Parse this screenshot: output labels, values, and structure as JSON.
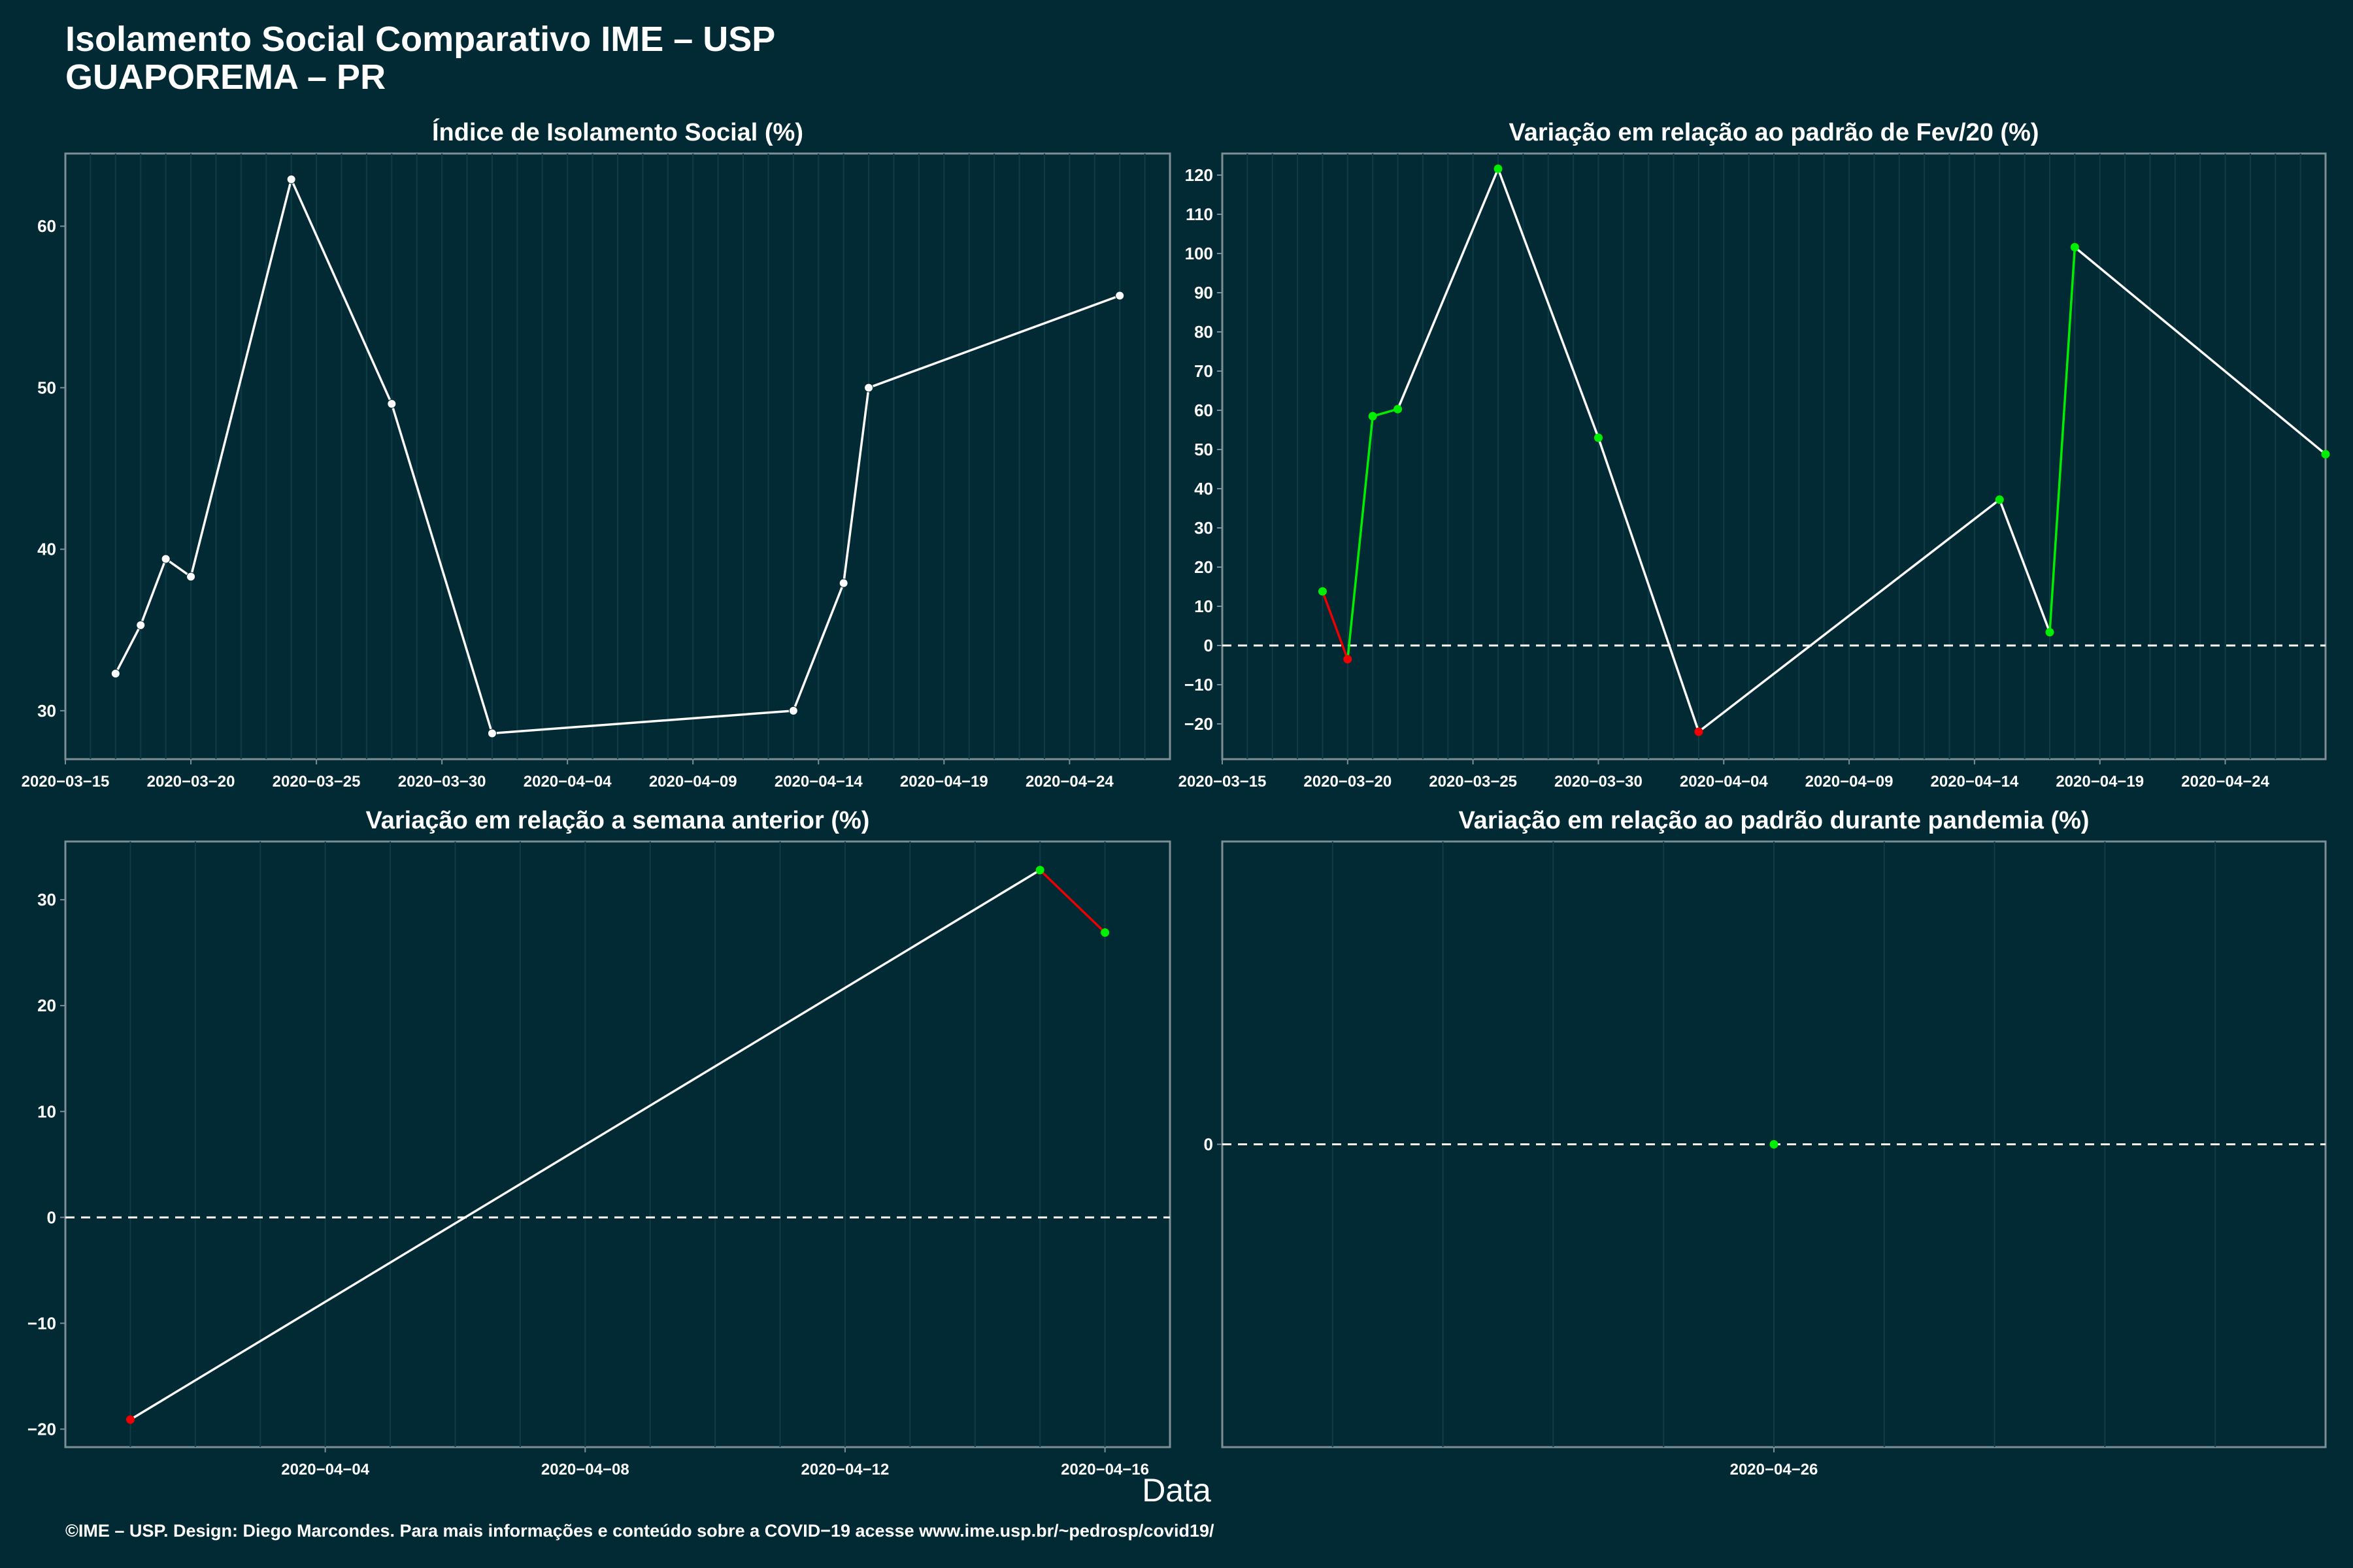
{
  "header": {
    "title_line1": "Isolamento Social Comparativo IME – USP",
    "title_line2": "GUAPOREMA – PR"
  },
  "x_axis_label": "Data",
  "footer": "©IME – USP. Design: Diego Marcondes. Para mais informações e conteúdo sobre a COVID−19 acesse www.ime.usp.br/~pedrosp/covid19/",
  "colors": {
    "background": "#022a35",
    "line": "#ffffff",
    "up": "#00ee00",
    "down": "#ee0000"
  },
  "chart_data": [
    {
      "type": "line",
      "title": "Índice de Isolamento Social (%)",
      "x_type": "date",
      "xlim": [
        "2020-03-15",
        "2020-04-28"
      ],
      "ylim": [
        27,
        64.5
      ],
      "x_ticks": [
        "2020-03-15",
        "2020-03-20",
        "2020-03-25",
        "2020-03-30",
        "2020-04-04",
        "2020-04-09",
        "2020-04-14",
        "2020-04-19",
        "2020-04-24"
      ],
      "x_tick_labels": [
        "2020−03−15",
        "2020−03−20",
        "2020−03−25",
        "2020−03−30",
        "2020−04−04",
        "2020−04−09",
        "2020−04−14",
        "2020−04−19",
        "2020−04−24"
      ],
      "y_ticks": [
        30,
        40,
        50,
        60
      ],
      "y_tick_labels": [
        "30",
        "40",
        "50",
        "60"
      ],
      "zero_line": false,
      "colored": false,
      "points": [
        {
          "x": "2020-03-17",
          "y": 32.3
        },
        {
          "x": "2020-03-18",
          "y": 35.3
        },
        {
          "x": "2020-03-19",
          "y": 39.4
        },
        {
          "x": "2020-03-20",
          "y": 38.3
        },
        {
          "x": "2020-03-24",
          "y": 62.9
        },
        {
          "x": "2020-03-28",
          "y": 49.0
        },
        {
          "x": "2020-04-01",
          "y": 28.6
        },
        {
          "x": "2020-04-13",
          "y": 30.0
        },
        {
          "x": "2020-04-15",
          "y": 37.9
        },
        {
          "x": "2020-04-16",
          "y": 50.0
        },
        {
          "x": "2020-04-26",
          "y": 55.7
        }
      ]
    },
    {
      "type": "line",
      "title": "Variação em relação ao padrão de Fev/20 (%)",
      "x_type": "date",
      "xlim": [
        "2020-03-15",
        "2020-04-28"
      ],
      "ylim": [
        -29,
        125.5
      ],
      "x_ticks": [
        "2020-03-15",
        "2020-03-20",
        "2020-03-25",
        "2020-03-30",
        "2020-04-04",
        "2020-04-09",
        "2020-04-14",
        "2020-04-19",
        "2020-04-24"
      ],
      "x_tick_labels": [
        "2020−03−15",
        "2020−03−20",
        "2020−03−25",
        "2020−03−30",
        "2020−04−04",
        "2020−04−09",
        "2020−04−14",
        "2020−04−19",
        "2020−04−24"
      ],
      "y_ticks": [
        -20,
        -10,
        0,
        10,
        20,
        30,
        40,
        50,
        60,
        70,
        80,
        90,
        100,
        110,
        120
      ],
      "y_tick_labels": [
        "−20",
        "−10",
        "0",
        "10",
        "20",
        "30",
        "40",
        "50",
        "60",
        "70",
        "80",
        "90",
        "100",
        "110",
        "120"
      ],
      "zero_line": true,
      "colored": true,
      "points": [
        {
          "x": "2020-03-19",
          "y": 13.8
        },
        {
          "x": "2020-03-20",
          "y": -3.5
        },
        {
          "x": "2020-03-21",
          "y": 58.5
        },
        {
          "x": "2020-03-22",
          "y": 60.3
        },
        {
          "x": "2020-03-26",
          "y": 121.6
        },
        {
          "x": "2020-03-30",
          "y": 53.0
        },
        {
          "x": "2020-04-03",
          "y": -22.0
        },
        {
          "x": "2020-04-15",
          "y": 37.2
        },
        {
          "x": "2020-04-17",
          "y": 3.4
        },
        {
          "x": "2020-04-18",
          "y": 101.6
        },
        {
          "x": "2020-04-28",
          "y": 48.8
        }
      ]
    },
    {
      "type": "line",
      "title": "Variação em relação a semana anterior (%)",
      "x_type": "date",
      "xlim": [
        "2020-03-31",
        "2020-04-17"
      ],
      "ylim": [
        -21.7,
        35.5
      ],
      "x_ticks": [
        "2020-04-04",
        "2020-04-08",
        "2020-04-12",
        "2020-04-16"
      ],
      "x_tick_labels": [
        "2020−04−04",
        "2020−04−08",
        "2020−04−12",
        "2020−04−16"
      ],
      "y_ticks": [
        -20,
        -10,
        0,
        10,
        20,
        30
      ],
      "y_tick_labels": [
        "−20",
        "−10",
        "0",
        "10",
        "20",
        "30"
      ],
      "zero_line": true,
      "colored": true,
      "points": [
        {
          "x": "2020-04-01",
          "y": -19.1
        },
        {
          "x": "2020-04-15",
          "y": 32.8
        },
        {
          "x": "2020-04-16",
          "y": 26.9
        }
      ]
    },
    {
      "type": "line",
      "title": "Variação em relação ao padrão durante pandemia (%)",
      "x_type": "date",
      "xlim": [
        "2020-04-21",
        "2020-05-01"
      ],
      "ylim": [
        -1,
        1
      ],
      "x_ticks": [
        "2020-04-26"
      ],
      "x_tick_labels": [
        "2020−04−26"
      ],
      "y_ticks": [
        0
      ],
      "y_tick_labels": [
        "0"
      ],
      "zero_line": true,
      "colored": true,
      "points": [
        {
          "x": "2020-04-26",
          "y": 0
        }
      ]
    }
  ]
}
